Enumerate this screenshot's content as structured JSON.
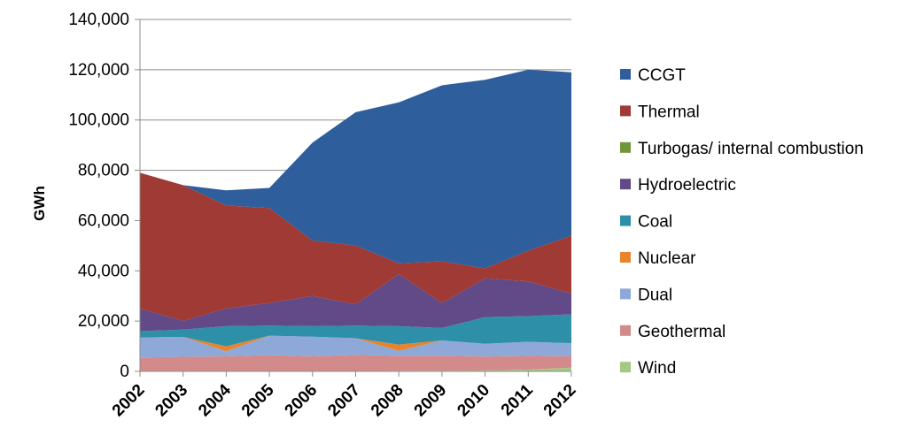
{
  "chart_data": {
    "type": "area",
    "stacked": true,
    "ylabel": "GWh",
    "xlabel": "",
    "ylim": [
      0,
      140000
    ],
    "y_ticks": [
      0,
      20000,
      40000,
      60000,
      80000,
      100000,
      120000,
      140000
    ],
    "y_tick_labels": [
      "0",
      "20,000",
      "40,000",
      "60,000",
      "80,000",
      "100,000",
      "120,000",
      "140,000"
    ],
    "categories": [
      "2002",
      "2003",
      "2004",
      "2005",
      "2006",
      "2007",
      "2008",
      "2009",
      "2010",
      "2011",
      "2012"
    ],
    "grid": "horizontal",
    "legend_position": "right",
    "series": [
      {
        "name": "Wind",
        "color": "#a5c882",
        "values": [
          0,
          0,
          0,
          0,
          0,
          100,
          200,
          300,
          400,
          700,
          1500
        ]
      },
      {
        "name": "Geothermal",
        "color": "#d28a8a",
        "values": [
          5500,
          5800,
          6000,
          6500,
          6000,
          6500,
          6000,
          6000,
          5500,
          5500,
          4500
        ]
      },
      {
        "name": "Dual",
        "color": "#8ea8d8",
        "values": [
          8000,
          7900,
          2000,
          7700,
          7800,
          6600,
          2000,
          6000,
          5100,
          5600,
          5200
        ]
      },
      {
        "name": "Nuclear",
        "color": "#e8842c",
        "values": [
          0,
          0,
          2000,
          0,
          0,
          0,
          2500,
          0,
          0,
          0,
          0
        ]
      },
      {
        "name": "Coal",
        "color": "#2e8fa8",
        "values": [
          2500,
          2900,
          8000,
          4000,
          4200,
          5000,
          7300,
          5000,
          10600,
          10200,
          11500
        ]
      },
      {
        "name": "Hydroelectric",
        "color": "#614a87",
        "values": [
          9000,
          3500,
          7000,
          9000,
          12000,
          8500,
          20700,
          9900,
          15400,
          13800,
          8300
        ]
      },
      {
        "name": "Turbogas/ internal combustion",
        "color": "#70963a",
        "values": [
          0,
          0,
          0,
          0,
          0,
          0,
          0,
          0,
          0,
          0,
          0
        ]
      },
      {
        "name": "Thermal",
        "color": "#a03a34",
        "values": [
          54000,
          54000,
          41000,
          37800,
          22000,
          23400,
          4300,
          16600,
          4000,
          12200,
          23000
        ]
      },
      {
        "name": "CCGT",
        "color": "#2f5e9c",
        "values": [
          0,
          0,
          6000,
          8000,
          39000,
          53000,
          64000,
          70000,
          75000,
          72000,
          65000
        ]
      }
    ],
    "legend_order": [
      "CCGT",
      "Thermal",
      "Turbogas/ internal combustion",
      "Hydroelectric",
      "Coal",
      "Nuclear",
      "Dual",
      "Geothermal",
      "Wind"
    ]
  }
}
